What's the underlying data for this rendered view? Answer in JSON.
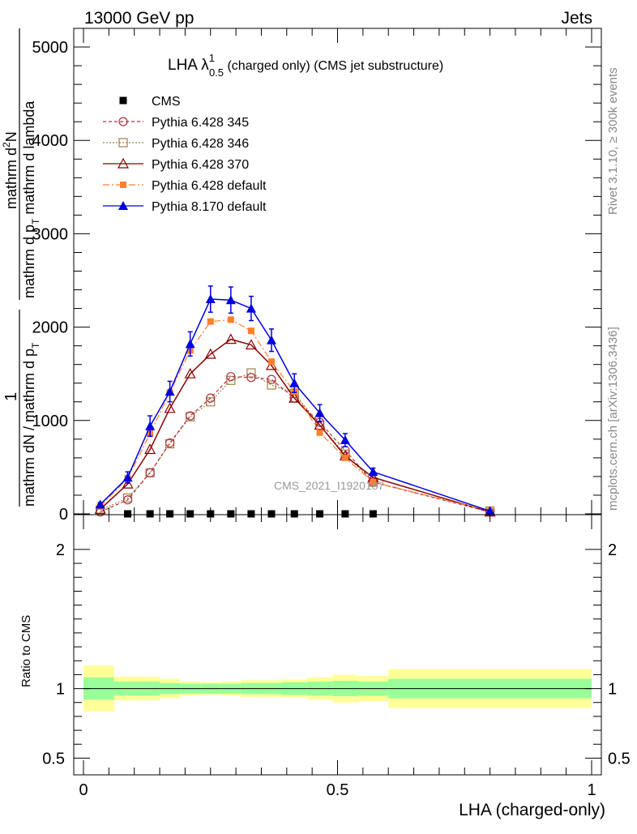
{
  "header": {
    "left": "13000 GeV pp",
    "right": "Jets"
  },
  "side": {
    "rivet": "Rivet 3.1.10, ≥ 300k events",
    "mcplots": "mcplots.cern.ch [arXiv:1306.3436]"
  },
  "watermark": "CMS_2021_I1920187",
  "title": {
    "main": "LHA λ",
    "sup": "1",
    "sub": "0.5",
    "rest": " (charged only) (CMS jet substructure)"
  },
  "colors": {
    "cms": "#000000",
    "py345": "#b03040",
    "py346": "#a08040",
    "py370": "#8b0000",
    "pydef": "#ff7f2a",
    "py8": "#0000e0",
    "band_inner": "#99ff99",
    "band_outer": "#ffff99"
  },
  "chart_data": [
    {
      "type": "line",
      "ylabel": "1 / mathrm dN / mathrm d p_T mathrm d^2N / mathrm d p_T mathrm d lambda",
      "ylabel_parts": {
        "numerator_a": "1",
        "denominator_a": "mathrm dN / mathrm d p",
        "denominator_a_sub": "T",
        "numerator_b": "mathrm d",
        "numerator_b_sup": "2",
        "numerator_b_rest": "N",
        "denominator_b": "mathrm d p",
        "denominator_b_sub": "T",
        "denominator_b_rest": " mathrm d lambda"
      },
      "xlim": [
        0,
        1
      ],
      "ylim": [
        0,
        5200
      ],
      "yticks": [
        0,
        1000,
        2000,
        3000,
        4000,
        5000
      ],
      "yticklabels": [
        "0",
        "1000",
        "2000",
        "3000",
        "4000",
        "5000"
      ],
      "legend_position": "top-left",
      "series": [
        {
          "name": "CMS",
          "style": "cms",
          "x": [
            0.087,
            0.131,
            0.17,
            0.21,
            0.25,
            0.29,
            0.33,
            0.37,
            0.415,
            0.465,
            0.515,
            0.57
          ],
          "y": [
            0,
            0,
            0,
            0,
            0,
            0,
            0,
            0,
            0,
            0,
            0,
            0
          ]
        },
        {
          "name": "Pythia 6.428 345",
          "style": "py345",
          "x": [
            0.033,
            0.087,
            0.131,
            0.17,
            0.21,
            0.25,
            0.29,
            0.33,
            0.37,
            0.415,
            0.465,
            0.515,
            0.57,
            0.8
          ],
          "y": [
            20,
            150,
            440,
            760,
            1050,
            1240,
            1470,
            1460,
            1440,
            1240,
            980,
            680,
            340,
            20
          ]
        },
        {
          "name": "Pythia 6.428 346",
          "style": "py346",
          "x": [
            0.033,
            0.087,
            0.131,
            0.17,
            0.21,
            0.25,
            0.29,
            0.33,
            0.37,
            0.415,
            0.465,
            0.515,
            0.57,
            0.8
          ],
          "y": [
            40,
            170,
            440,
            750,
            1040,
            1200,
            1430,
            1510,
            1380,
            1290,
            950,
            640,
            340,
            30
          ]
        },
        {
          "name": "Pythia 6.428 370",
          "style": "py370",
          "x": [
            0.033,
            0.087,
            0.131,
            0.17,
            0.21,
            0.25,
            0.29,
            0.33,
            0.37,
            0.415,
            0.465,
            0.515,
            0.57,
            0.8
          ],
          "y": [
            50,
            320,
            690,
            1130,
            1500,
            1710,
            1870,
            1810,
            1590,
            1240,
            950,
            620,
            390,
            20
          ]
        },
        {
          "name": "Pythia 6.428 default",
          "style": "pydef",
          "x": [
            0.033,
            0.087,
            0.131,
            0.17,
            0.21,
            0.25,
            0.29,
            0.33,
            0.37,
            0.415,
            0.465,
            0.515,
            0.57,
            0.8
          ],
          "y": [
            80,
            380,
            860,
            1300,
            1750,
            2060,
            2080,
            1960,
            1630,
            1310,
            870,
            600,
            340,
            30
          ]
        },
        {
          "name": "Pythia 8.170 default",
          "style": "py8",
          "x": [
            0.033,
            0.087,
            0.131,
            0.17,
            0.21,
            0.25,
            0.29,
            0.33,
            0.37,
            0.415,
            0.465,
            0.515,
            0.57,
            0.8
          ],
          "y": [
            100,
            390,
            940,
            1310,
            1820,
            2300,
            2290,
            2200,
            1860,
            1400,
            1080,
            790,
            450,
            30
          ],
          "yerr": [
            20,
            60,
            110,
            110,
            130,
            140,
            140,
            130,
            120,
            100,
            90,
            70,
            40,
            10
          ]
        }
      ]
    },
    {
      "type": "area",
      "ylabel": "Ratio to CMS",
      "xlabel": "LHA (charged-only)",
      "xlim": [
        0,
        1
      ],
      "ylim": [
        0.38,
        2.25
      ],
      "yticks": [
        0.5,
        1,
        2
      ],
      "yticklabels": [
        "0.5",
        "1",
        "2"
      ],
      "xticks": [
        0,
        0.5,
        1
      ],
      "xticklabels": [
        "0",
        "0.5",
        "1"
      ],
      "bins": [
        0,
        0.06,
        0.15,
        0.19,
        0.23,
        0.27,
        0.31,
        0.35,
        0.39,
        0.44,
        0.49,
        0.54,
        0.6,
        1.0
      ],
      "inner_lo": [
        0.92,
        0.95,
        0.96,
        0.965,
        0.965,
        0.965,
        0.96,
        0.96,
        0.955,
        0.95,
        0.945,
        0.95,
        0.93
      ],
      "inner_hi": [
        1.08,
        1.05,
        1.04,
        1.035,
        1.035,
        1.035,
        1.04,
        1.04,
        1.045,
        1.05,
        1.055,
        1.05,
        1.07
      ],
      "outer_lo": [
        0.835,
        0.915,
        0.93,
        0.95,
        0.955,
        0.95,
        0.94,
        0.94,
        0.935,
        0.92,
        0.9,
        0.91,
        0.86
      ],
      "outer_hi": [
        1.165,
        1.085,
        1.07,
        1.05,
        1.045,
        1.05,
        1.06,
        1.06,
        1.065,
        1.08,
        1.1,
        1.09,
        1.14
      ]
    }
  ]
}
